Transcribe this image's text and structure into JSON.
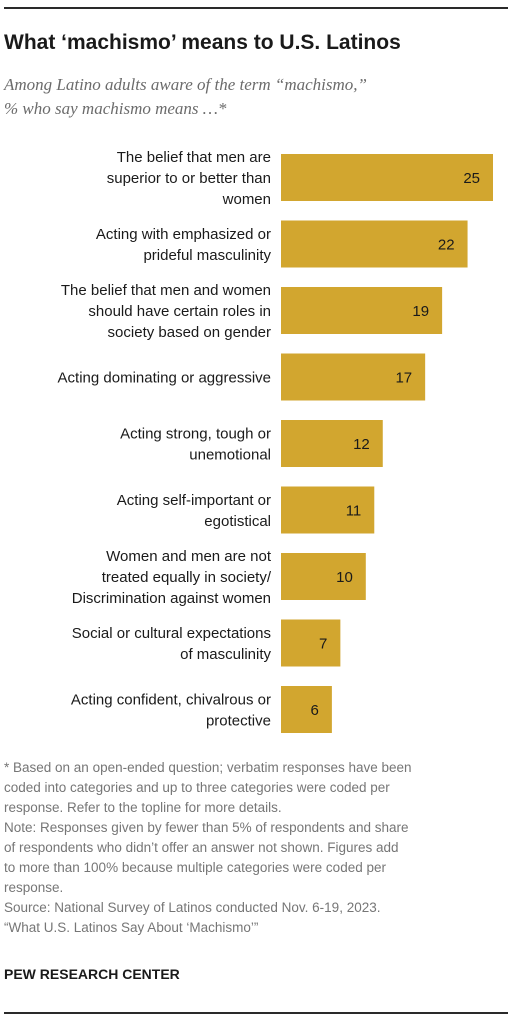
{
  "title": "What ‘machismo’ means to U.S. Latinos",
  "subtitle_lines": [
    "Among Latino adults aware of the term “machismo,”",
    "% who say machismo means …*"
  ],
  "colors": {
    "bar": "#d2a62f",
    "text": "#1a1a1a",
    "notes": "#767676",
    "subtitle": "#6b6b6b"
  },
  "chart_data": {
    "type": "bar",
    "orientation": "horizontal",
    "categories": [
      "The belief that men are superior to or better than women",
      "Acting with emphasized or prideful masculinity",
      "The belief that men and women should have certain roles in society based on gender",
      "Acting dominating or aggressive",
      "Acting strong, tough or unemotional",
      "Acting self-important or egotistical",
      "Women and men are not treated equally in society/ Discrimination against women",
      "Social or cultural expectations of masculinity",
      "Acting confident, chivalrous or protective"
    ],
    "category_label_lines": [
      [
        "The belief that men are",
        "superior to or better than",
        "women"
      ],
      [
        "Acting with emphasized or",
        "prideful masculinity"
      ],
      [
        "The belief that men and women",
        "should have certain roles in",
        "society based on gender"
      ],
      [
        "Acting dominating or aggressive"
      ],
      [
        "Acting strong, tough or",
        "unemotional"
      ],
      [
        "Acting self-important or",
        "egotistical"
      ],
      [
        "Women and men are not",
        "treated equally in society/",
        "Discrimination against women"
      ],
      [
        "Social or cultural expectations",
        "of masculinity"
      ],
      [
        "Acting confident, chivalrous or",
        "protective"
      ]
    ],
    "values": [
      25,
      22,
      19,
      17,
      12,
      11,
      10,
      7,
      6
    ],
    "xlim": [
      0,
      25
    ],
    "grid": false,
    "legend": "none"
  },
  "notes_lines": [
    "* Based on an open-ended question; verbatim responses have been",
    "coded into categories and up to three categories were coded per",
    "response. Refer to the topline for more details.",
    "Note: Responses given by fewer than 5% of respondents and share",
    "of respondents who didn’t offer an answer not shown. Figures add",
    "to more than 100% because multiple categories were coded per",
    "response.",
    "Source: National Survey of Latinos conducted Nov. 6-19, 2023.",
    "“What U.S. Latinos Say About ‘Machismo’”"
  ],
  "brand": "PEW RESEARCH CENTER"
}
